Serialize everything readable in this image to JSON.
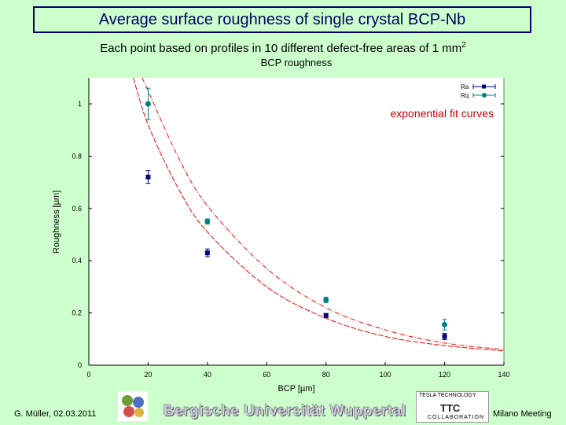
{
  "slide": {
    "title": "Average surface roughness of single crystal BCP-Nb",
    "subtitle_main": "Each point based on profiles in 10 different defect-free areas of 1 mm",
    "subtitle_sup": "2",
    "footer_left": "G. Müller, 02.03.2011",
    "footer_right": "Milano Meeting",
    "university": "Bergische Universität Wuppertal",
    "ttc_top": "TESLA TECHNOLOGY",
    "ttc_mid": "TTC",
    "ttc_bot": "COLLABORATION"
  },
  "chart_data": {
    "type": "scatter",
    "title": "BCP roughness",
    "xlabel": "BCP [µm]",
    "ylabel": "Roughness [µm]",
    "xlim": [
      0,
      140
    ],
    "ylim": [
      0,
      1.1
    ],
    "x_ticks": [
      0,
      20,
      40,
      60,
      80,
      100,
      120,
      140
    ],
    "y_ticks": [
      0,
      0.2,
      0.4,
      0.6,
      0.8,
      1
    ],
    "grid": false,
    "legend_position": "top-right",
    "annotation": "exponential fit curves",
    "colors": {
      "Ra": "#000080",
      "Rq": "#008080",
      "fit": "#ff0000"
    },
    "series": [
      {
        "name": "Ra",
        "x": [
          20,
          40,
          80,
          120
        ],
        "y": [
          0.72,
          0.43,
          0.19,
          0.11
        ],
        "err": [
          0.025,
          0.015,
          0.008,
          0.012
        ]
      },
      {
        "name": "Rq",
        "x": [
          20,
          40,
          80,
          120
        ],
        "y": [
          1.0,
          0.55,
          0.25,
          0.155
        ],
        "err": [
          0.06,
          0.01,
          0.01,
          0.02
        ]
      }
    ],
    "fits": [
      {
        "for": "Ra",
        "x": [
          15,
          20,
          30,
          40,
          60,
          80,
          100,
          120,
          140
        ],
        "y": [
          1.1,
          0.92,
          0.68,
          0.51,
          0.3,
          0.18,
          0.11,
          0.075,
          0.055
        ]
      },
      {
        "for": "Rq",
        "x": [
          18,
          20,
          30,
          40,
          60,
          80,
          100,
          120,
          140
        ],
        "y": [
          1.1,
          1.05,
          0.8,
          0.61,
          0.37,
          0.22,
          0.135,
          0.085,
          0.06
        ]
      }
    ]
  }
}
